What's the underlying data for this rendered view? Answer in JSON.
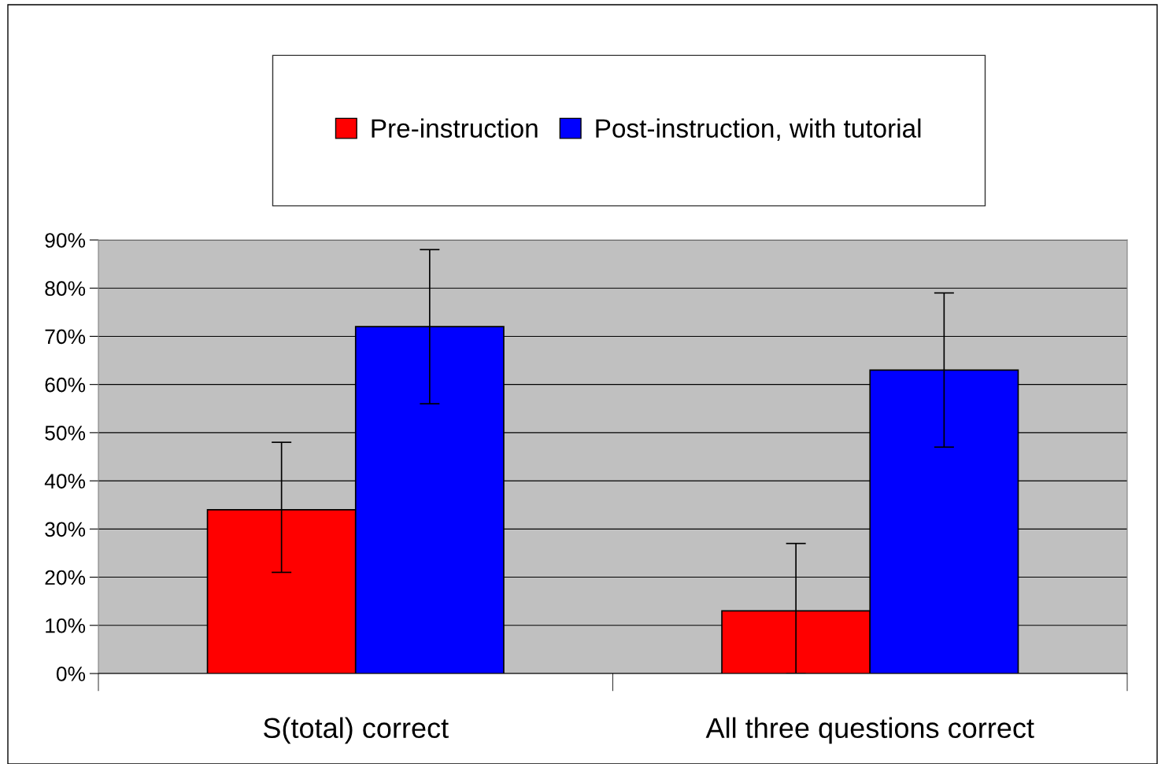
{
  "chart_data": {
    "type": "bar",
    "categories": [
      "S(total) correct",
      "All three questions correct"
    ],
    "series": [
      {
        "name": "Pre-instruction",
        "color": "#ff0000",
        "values": [
          34,
          13
        ],
        "errors": [
          [
            21,
            48
          ],
          [
            0,
            27
          ]
        ]
      },
      {
        "name": "Post-instruction, with tutorial",
        "color": "#0000ff",
        "values": [
          72,
          63
        ],
        "errors": [
          [
            56,
            88
          ],
          [
            47,
            79
          ]
        ]
      }
    ],
    "ylim": [
      0,
      90
    ],
    "yticks": [
      {
        "value": 0,
        "label": "0%"
      },
      {
        "value": 10,
        "label": "10%"
      },
      {
        "value": 20,
        "label": "20%"
      },
      {
        "value": 30,
        "label": "30%"
      },
      {
        "value": 40,
        "label": "40%"
      },
      {
        "value": 50,
        "label": "50%"
      },
      {
        "value": 60,
        "label": "60%"
      },
      {
        "value": 70,
        "label": "70%"
      },
      {
        "value": 80,
        "label": "80%"
      },
      {
        "value": 90,
        "label": "90%"
      }
    ],
    "grid": "y",
    "legend": "top"
  }
}
